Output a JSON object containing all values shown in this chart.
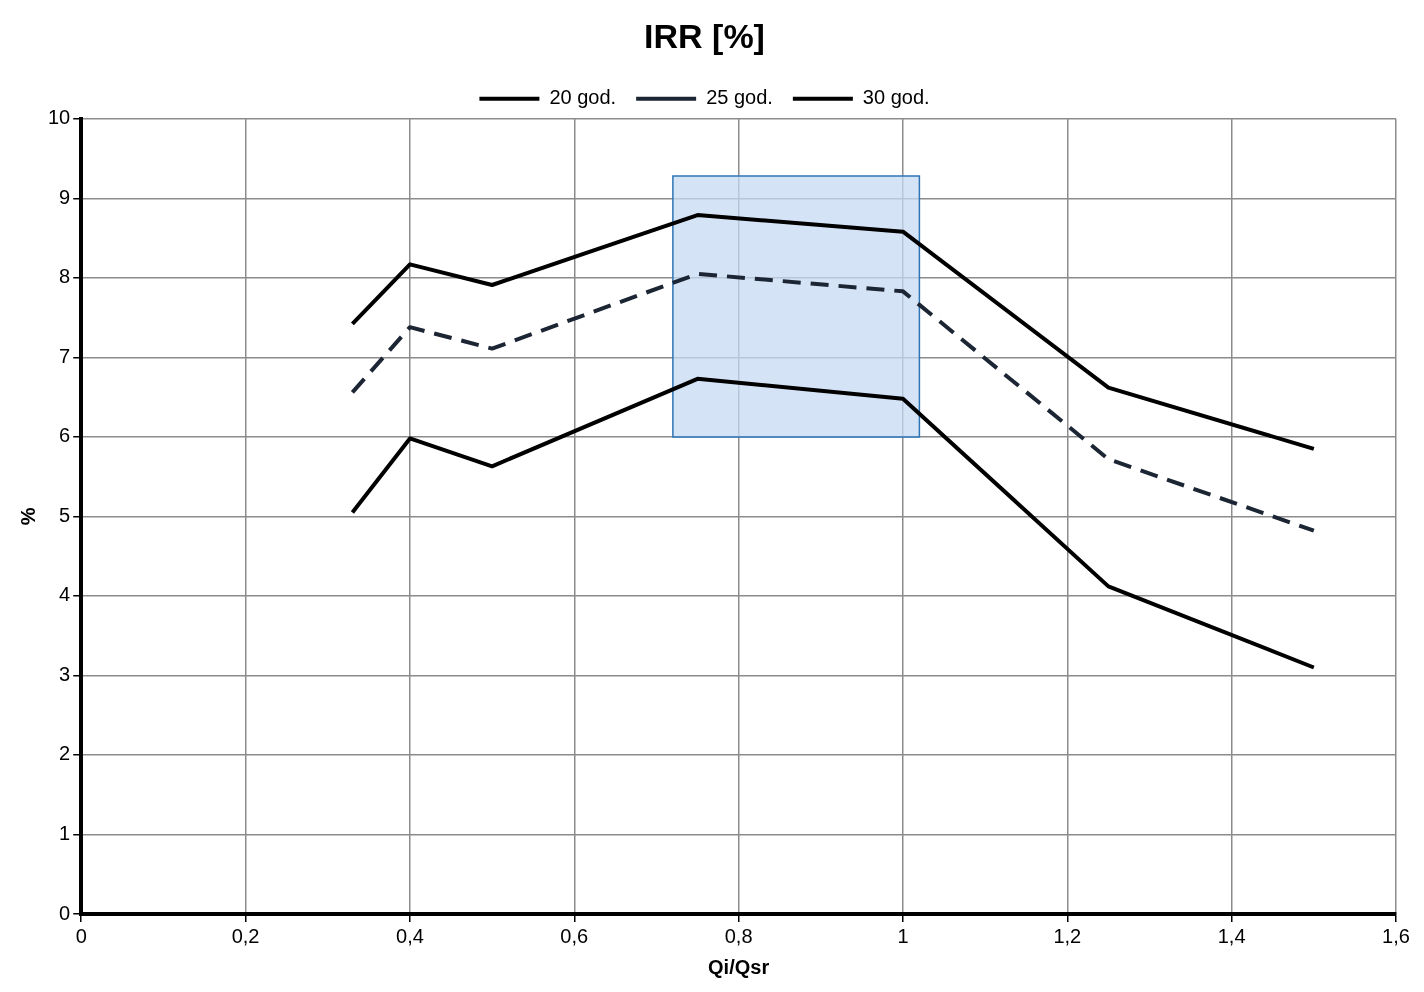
{
  "chart_data": {
    "type": "line",
    "title": "IRR [%]",
    "xlabel": "Qi/Qsr",
    "ylabel": "%",
    "xlim": [
      0,
      1.6
    ],
    "xticks": [
      0,
      {
        "value": 0.2,
        "label": "0,2"
      },
      {
        "value": 0.4,
        "label": "0,4"
      },
      {
        "value": 0.6,
        "label": "0,6"
      },
      {
        "value": 0.8,
        "label": "0,8"
      },
      1,
      {
        "value": 1.2,
        "label": "1,2"
      },
      {
        "value": 1.4,
        "label": "1,4"
      },
      {
        "value": 1.6,
        "label": "1,6"
      }
    ],
    "ylim": [
      0,
      10
    ],
    "yticks": [
      0,
      1,
      2,
      3,
      4,
      5,
      6,
      7,
      8,
      9,
      10
    ],
    "x": [
      0.33,
      0.4,
      0.5,
      0.75,
      1.0,
      1.25,
      1.5
    ],
    "series": [
      {
        "name": "20 god.",
        "color": "#000000",
        "line_style": "solid",
        "values": [
          5.05,
          5.98,
          5.63,
          6.73,
          6.48,
          4.12,
          3.1
        ]
      },
      {
        "name": "25 god.",
        "color": "#1c2533",
        "line_style": "dashed",
        "values": [
          6.56,
          7.38,
          7.11,
          8.05,
          7.83,
          5.72,
          4.82
        ]
      },
      {
        "name": "30 god.",
        "color": "#000000",
        "line_style": "solid",
        "values": [
          7.42,
          8.17,
          7.91,
          8.79,
          8.58,
          6.62,
          5.85
        ]
      }
    ],
    "bands": [
      {
        "axis": "x",
        "from": 0.72,
        "to": 1.02,
        "color": "#c5d9f1"
      }
    ],
    "grid": true,
    "legend": "top",
    "marker": "none"
  }
}
